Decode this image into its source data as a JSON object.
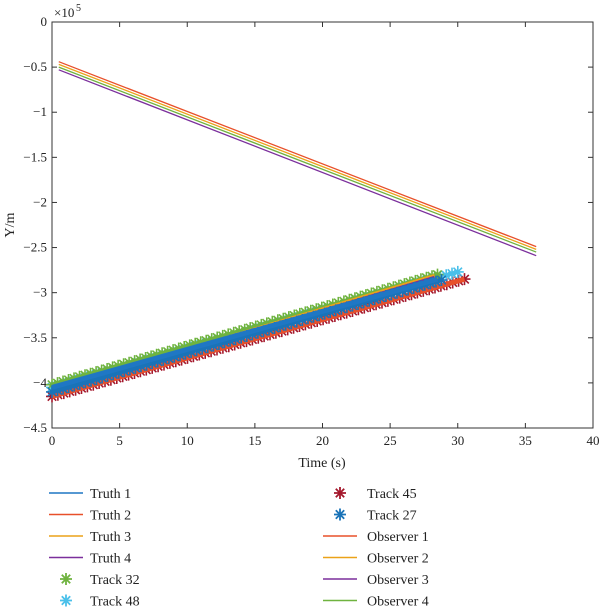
{
  "chart_data": {
    "type": "line",
    "xlabel": "Time (s)",
    "ylabel": "Y/m",
    "exponent_label": "×10",
    "exponent_power": "5",
    "xlim": [
      0,
      40
    ],
    "ylim": [
      -4.5,
      0
    ],
    "y_scale_note": "values in units of 1e5 m",
    "x_ticks": [
      "0",
      "5",
      "10",
      "15",
      "20",
      "25",
      "30",
      "35",
      "40"
    ],
    "y_ticks": [
      "0",
      "−0.5",
      "−1",
      "−1.5",
      "−2",
      "−2.5",
      "−3",
      "−3.5",
      "−4",
      "−4.5"
    ],
    "legend_position": "bottom",
    "series": [
      {
        "name": "Truth 1",
        "kind": "line",
        "color": "#1f77c4",
        "x": [
          0,
          28.5
        ],
        "y": [
          -4.05,
          -2.85
        ]
      },
      {
        "name": "Truth 2",
        "kind": "line",
        "color": "#e8502a",
        "x": [
          0,
          30.5
        ],
        "y": [
          -4.15,
          -2.85
        ]
      },
      {
        "name": "Truth 3",
        "kind": "line",
        "color": "#eba219",
        "x": [
          0,
          28.3
        ],
        "y": [
          -4.08,
          -2.82
        ]
      },
      {
        "name": "Truth 4",
        "kind": "line",
        "color": "#7b2f9c",
        "x": [
          0,
          28.3
        ],
        "y": [
          -4.1,
          -2.84
        ]
      },
      {
        "name": "Track 32",
        "kind": "marker",
        "color": "#6fb33f",
        "x": [
          0,
          28.5
        ],
        "y": [
          -4.02,
          -2.8
        ]
      },
      {
        "name": "Track 48",
        "kind": "marker",
        "color": "#4ac0ea",
        "x": [
          0,
          30
        ],
        "y": [
          -4.05,
          -2.77
        ]
      },
      {
        "name": "Track 45",
        "kind": "marker",
        "color": "#a4182c",
        "x": [
          0,
          30.5
        ],
        "y": [
          -4.15,
          -2.85
        ]
      },
      {
        "name": "Track 27",
        "kind": "marker",
        "color": "#1a73b8",
        "x": [
          0,
          28.8
        ],
        "y": [
          -4.1,
          -2.86
        ]
      },
      {
        "name": "Observer 1",
        "kind": "line",
        "color": "#e8502a",
        "x": [
          0.5,
          35.8
        ],
        "y": [
          -0.44,
          -2.49
        ]
      },
      {
        "name": "Observer 2",
        "kind": "line",
        "color": "#eba219",
        "x": [
          0.5,
          35.8
        ],
        "y": [
          -0.47,
          -2.52
        ]
      },
      {
        "name": "Observer 3",
        "kind": "line",
        "color": "#7b2f9c",
        "x": [
          0.5,
          35.8
        ],
        "y": [
          -0.53,
          -2.59
        ]
      },
      {
        "name": "Observer 4",
        "kind": "line",
        "color": "#6fb33f",
        "x": [
          0.5,
          35.8
        ],
        "y": [
          -0.5,
          -2.55
        ]
      }
    ]
  }
}
